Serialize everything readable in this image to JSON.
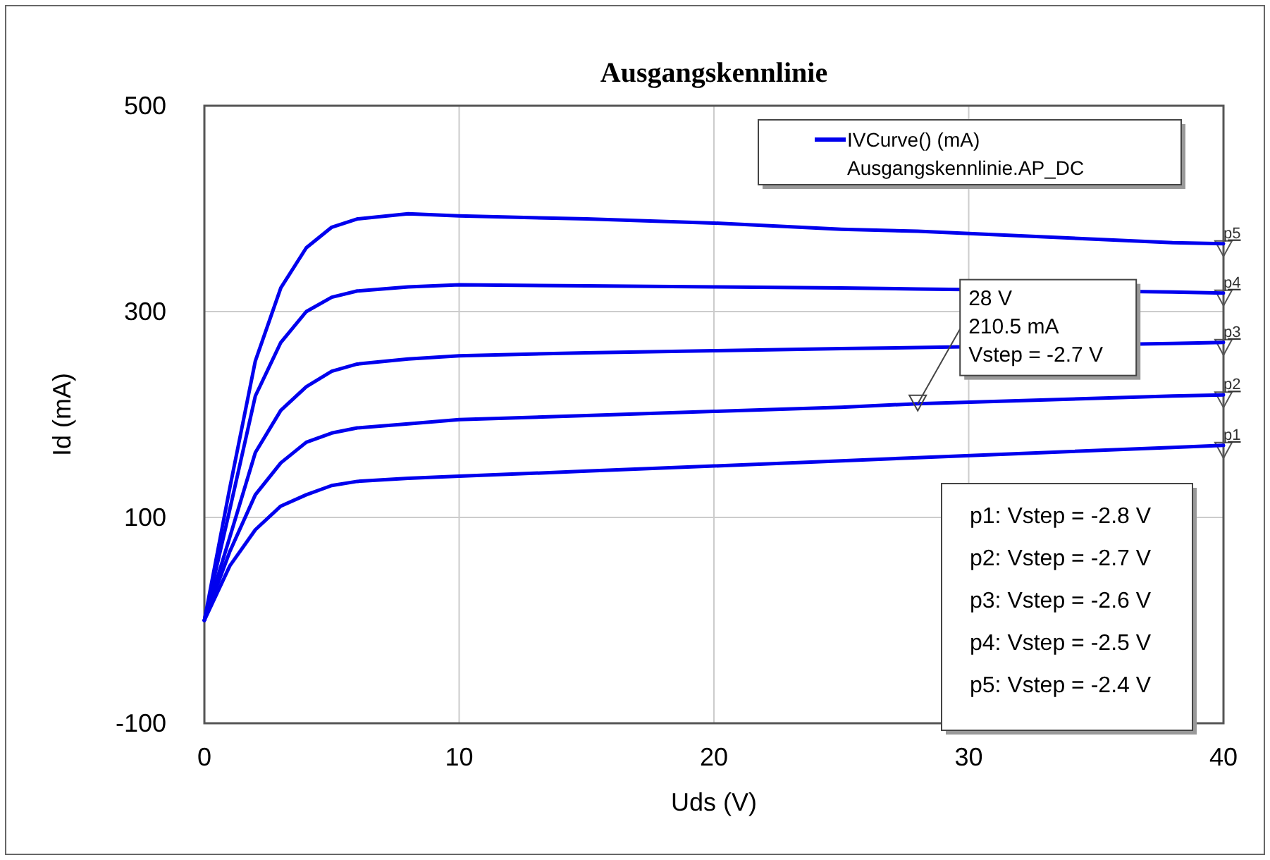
{
  "chart_data": {
    "type": "line",
    "title": "Ausgangskennlinie",
    "xlabel": "Uds (V)",
    "ylabel": "Id (mA)",
    "legend_title": "IVCurve() (mA)\nAusgangskennlinie.AP_DC",
    "legend": "top right",
    "grid": true,
    "x": [
      0,
      1,
      2,
      3,
      4,
      5,
      6,
      8,
      10,
      15,
      20,
      25,
      28,
      38,
      40
    ],
    "series": [
      {
        "name": "p1",
        "color": "#0000ee",
        "values": [
          0,
          53,
          88,
          111,
          122,
          131,
          135,
          138,
          140,
          145,
          150,
          155,
          158,
          168,
          170
        ]
      },
      {
        "name": "p2",
        "color": "#0000ee",
        "values": [
          0,
          67,
          122,
          153,
          173,
          182,
          187,
          191,
          195,
          199,
          203,
          207,
          210.5,
          218,
          219
        ]
      },
      {
        "name": "p3",
        "color": "#0000ee",
        "values": [
          0,
          81,
          163,
          204,
          227,
          242,
          249,
          254,
          257,
          260,
          262,
          264,
          265,
          269,
          270
        ]
      },
      {
        "name": "p4",
        "color": "#0000ee",
        "values": [
          0,
          108,
          218,
          270,
          300,
          314,
          320,
          324,
          326,
          325,
          324,
          323,
          322,
          319,
          318
        ]
      },
      {
        "name": "p5",
        "color": "#0000ee",
        "values": [
          0,
          129,
          252,
          323,
          362,
          382,
          390,
          395,
          393,
          390,
          386,
          380,
          378,
          367,
          366
        ]
      }
    ],
    "xlim": [
      0,
      40
    ],
    "xticks": [
      0,
      10,
      20,
      30,
      40
    ],
    "ylim": [
      -100,
      500
    ],
    "yticks": [
      -100,
      100,
      300,
      500
    ],
    "annotations": [
      {
        "text": "28 V\n210.5 mA\nVstep = -2.7 V",
        "x": 28,
        "y": 210.5
      },
      "p1: Vstep = -2.8 V",
      "p2: Vstep = -2.7 V",
      "p3: Vstep = -2.6 V",
      "p4: Vstep = -2.5 V",
      "p5: Vstep = -2.4 V"
    ]
  }
}
